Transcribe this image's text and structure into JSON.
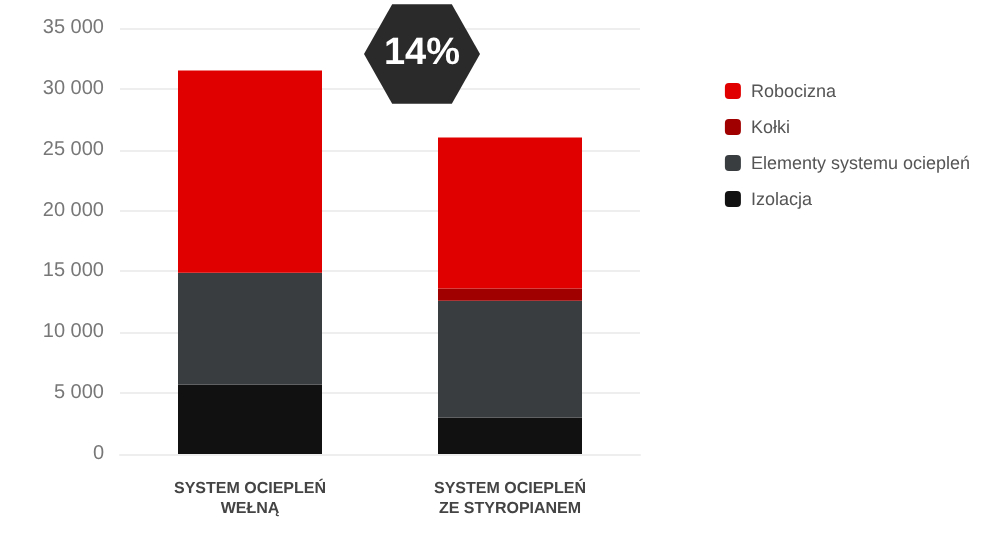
{
  "chart_data": {
    "type": "bar",
    "stacked": true,
    "categories": [
      "SYSTEM OCIEPLEŃ\nWEŁNĄ",
      "SYSTEM OCIEPLEŃ\nZE STYROPIANEM"
    ],
    "series": [
      {
        "name": "Izolacja",
        "color": "#111111",
        "values": [
          5700,
          3000
        ]
      },
      {
        "name": "Elementy systemu ociepleń",
        "color": "#3a3d40",
        "values": [
          9200,
          9600
        ]
      },
      {
        "name": "Kołki",
        "color": "#a00000",
        "values": [
          0,
          1000
        ]
      },
      {
        "name": "Robocizna",
        "color": "#e00000",
        "values": [
          16600,
          12400
        ]
      }
    ],
    "ylim": [
      0,
      35000
    ],
    "yticks": [
      0,
      5000,
      10000,
      15000,
      20000,
      25000,
      30000,
      35000
    ],
    "grid": "y",
    "legend": "top right",
    "annotations": [
      "14%"
    ]
  }
}
